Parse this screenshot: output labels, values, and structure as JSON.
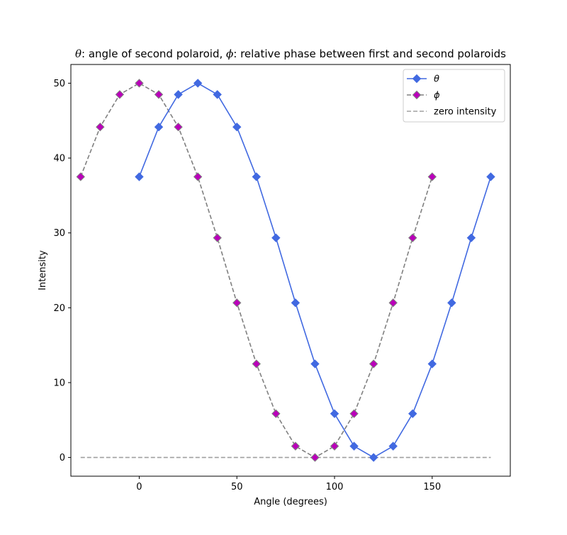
{
  "chart_data": {
    "type": "line",
    "title_parts": [
      {
        "text": "θ",
        "math": true
      },
      {
        "text": ": angle of second polaroid, ",
        "math": false
      },
      {
        "text": "ϕ",
        "math": true
      },
      {
        "text": ": relative phase between first and second polaroids",
        "math": false
      }
    ],
    "xlabel": "Angle (degrees)",
    "ylabel": "Intensity",
    "xlim": [
      -35,
      190
    ],
    "ylim": [
      -2.5,
      52.5
    ],
    "xticks": [
      0,
      50,
      100,
      150
    ],
    "yticks": [
      0,
      10,
      20,
      30,
      40,
      50
    ],
    "grid": false,
    "legend_position": "top-right",
    "series": [
      {
        "name": "θ",
        "color": "#4169E1",
        "line_style": "solid",
        "marker": "diamond",
        "marker_face": "#4169E1",
        "marker_edge": "#4169E1",
        "x": [
          0,
          10,
          20,
          30,
          40,
          50,
          60,
          70,
          80,
          90,
          100,
          110,
          120,
          130,
          140,
          150,
          160,
          170,
          180
        ],
        "y": [
          37.5,
          44.15,
          48.49,
          50.0,
          48.49,
          44.15,
          37.5,
          29.34,
          20.66,
          12.5,
          5.85,
          1.51,
          0.0,
          1.51,
          5.85,
          12.5,
          20.66,
          29.34,
          37.5
        ]
      },
      {
        "name": "ϕ",
        "color": "#808080",
        "line_style": "dashed",
        "marker": "diamond",
        "marker_face": "#BA00BA",
        "marker_edge": "#808080",
        "x": [
          -30,
          -20,
          -10,
          0,
          10,
          20,
          30,
          40,
          50,
          60,
          70,
          80,
          90,
          100,
          110,
          120,
          130,
          140,
          150
        ],
        "y": [
          37.5,
          44.15,
          48.49,
          50.0,
          48.49,
          44.15,
          37.5,
          29.34,
          20.66,
          12.5,
          5.85,
          1.51,
          0.0,
          1.51,
          5.85,
          12.5,
          20.66,
          29.34,
          37.5
        ]
      },
      {
        "name": "zero intensity",
        "color": "#A0A0A0",
        "line_style": "dashed",
        "marker": "none",
        "x": [
          -30,
          180
        ],
        "y": [
          0,
          0
        ]
      }
    ]
  }
}
